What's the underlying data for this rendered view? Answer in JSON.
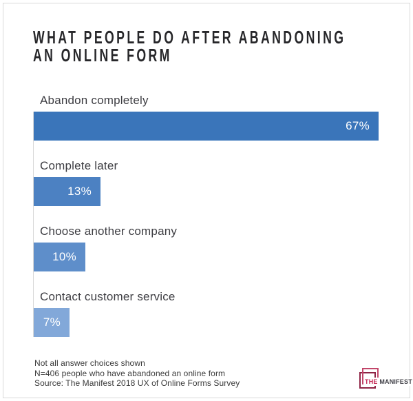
{
  "title": {
    "line1": "WHAT PEOPLE DO AFTER ABANDONING",
    "line2": "AN ONLINE FORM"
  },
  "chart_data": {
    "type": "bar",
    "orientation": "horizontal",
    "title": "What people do after abandoning an online form",
    "categories": [
      "Abandon completely",
      "Complete later",
      "Choose another company",
      "Contact customer service"
    ],
    "values": [
      67,
      13,
      10,
      7
    ],
    "value_labels": [
      "67%",
      "13%",
      "10%",
      "7%"
    ],
    "unit": "percent",
    "bar_colors": [
      "#3a75ba",
      "#4c81c2",
      "#5e8eca",
      "#82a8d9"
    ],
    "value_label_color": "#ffffff",
    "axis_line_color": "#d9d9d9",
    "legend": "none",
    "grid": "off"
  },
  "footnotes": [
    "Not all answer choices shown",
    "N=406 people who have abandoned an online form",
    "Source: The Manifest 2018 UX of Online Forms Survey"
  ],
  "logo": {
    "the": "THE",
    "manifest": "MANIFEST",
    "accent_color": "#c2204e",
    "square_front_color": "#c2466a",
    "square_back_color": "#8e2344"
  }
}
